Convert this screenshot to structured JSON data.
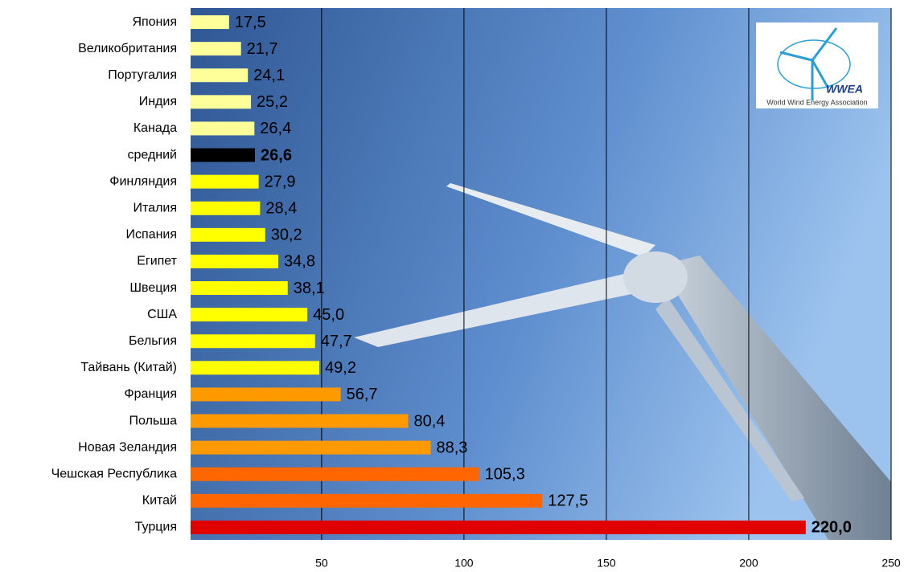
{
  "chart_data": {
    "type": "hbar",
    "categories": [
      "Япония",
      "Великобритания",
      "Португалия",
      "Индия",
      "Канада",
      "средний",
      "Финляндия",
      "Италия",
      "Испания",
      "Египет",
      "Швеция",
      "США",
      "Бельгия",
      "Тайвань (Китай)",
      "Франция",
      "Польша",
      "Новая Зеландия",
      "Чешская Республика",
      "Китай",
      "Турция"
    ],
    "values": [
      17.5,
      21.7,
      24.1,
      25.2,
      26.4,
      26.6,
      27.9,
      28.4,
      30.2,
      34.8,
      38.1,
      45.0,
      47.7,
      49.2,
      56.7,
      80.4,
      88.3,
      105.3,
      127.5,
      220.0
    ],
    "value_labels": [
      "17,5",
      "21,7",
      "24,1",
      "25,2",
      "26,4",
      "26,6",
      "27,9",
      "28,4",
      "30,2",
      "34,8",
      "38,1",
      "45,0",
      "47,7",
      "49,2",
      "56,7",
      "80,4",
      "88,3",
      "105,3",
      "127,5",
      "220,0"
    ],
    "colors": [
      "#ffff99",
      "#ffff99",
      "#ffff99",
      "#ffff99",
      "#ffff99",
      "#000000",
      "#ffff00",
      "#ffff00",
      "#ffff00",
      "#ffff00",
      "#ffff00",
      "#ffff00",
      "#ffff00",
      "#ffff00",
      "#ff9900",
      "#ff9900",
      "#ff9900",
      "#ff6600",
      "#ff6600",
      "#e00000"
    ],
    "bold_labels": [
      false,
      false,
      false,
      false,
      false,
      true,
      false,
      false,
      false,
      false,
      false,
      false,
      false,
      false,
      false,
      false,
      false,
      false,
      false,
      true
    ],
    "xlim": [
      4,
      250
    ],
    "xticks": [
      50,
      100,
      150,
      200,
      250
    ],
    "grid": true,
    "logo": {
      "title": "WWEA",
      "subtitle": "World Wind Energy Association"
    }
  }
}
